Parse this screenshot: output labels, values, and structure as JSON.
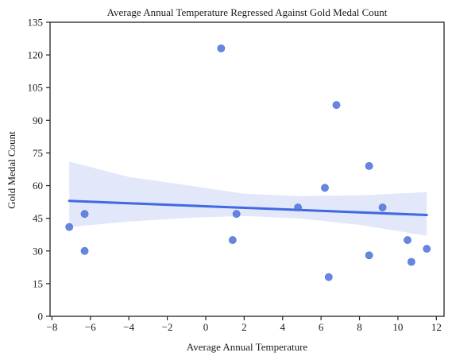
{
  "chart_data": {
    "type": "scatter",
    "title": "Average Annual Temperature Regressed Against Gold Medal Count",
    "xlabel": "Average Annual Temperature",
    "ylabel": "Gold Medal Count",
    "xlim": [
      -8.1,
      12.4
    ],
    "ylim": [
      0,
      135
    ],
    "xticks": [
      -8,
      -6,
      -4,
      -2,
      0,
      2,
      4,
      6,
      8,
      10,
      12
    ],
    "yticks": [
      0,
      15,
      30,
      45,
      60,
      75,
      90,
      105,
      120,
      135
    ],
    "grid": false,
    "points": [
      {
        "x": -7.1,
        "y": 41
      },
      {
        "x": -6.3,
        "y": 47
      },
      {
        "x": -6.3,
        "y": 30
      },
      {
        "x": 0.8,
        "y": 123
      },
      {
        "x": 1.4,
        "y": 35
      },
      {
        "x": 1.6,
        "y": 47
      },
      {
        "x": 4.8,
        "y": 50
      },
      {
        "x": 6.2,
        "y": 59
      },
      {
        "x": 6.4,
        "y": 18
      },
      {
        "x": 6.8,
        "y": 97
      },
      {
        "x": 8.5,
        "y": 69
      },
      {
        "x": 8.5,
        "y": 28
      },
      {
        "x": 9.2,
        "y": 50
      },
      {
        "x": 10.5,
        "y": 35
      },
      {
        "x": 10.7,
        "y": 25
      },
      {
        "x": 11.5,
        "y": 31
      }
    ],
    "regression": {
      "x": [
        -7.1,
        11.5
      ],
      "y": [
        53,
        46.5
      ]
    },
    "confidence_band": {
      "x": [
        -7.1,
        -4,
        -1,
        2,
        4.8,
        8,
        11.5
      ],
      "upper": [
        71,
        64,
        60.2,
        56.3,
        55.2,
        55.5,
        57
      ],
      "lower": [
        41,
        43.5,
        45.2,
        46.1,
        45,
        42,
        37
      ]
    },
    "colors": {
      "points": "#4c72d9",
      "line": "#4169e1",
      "band": "#dfe4f8",
      "axes": "#222222"
    }
  }
}
